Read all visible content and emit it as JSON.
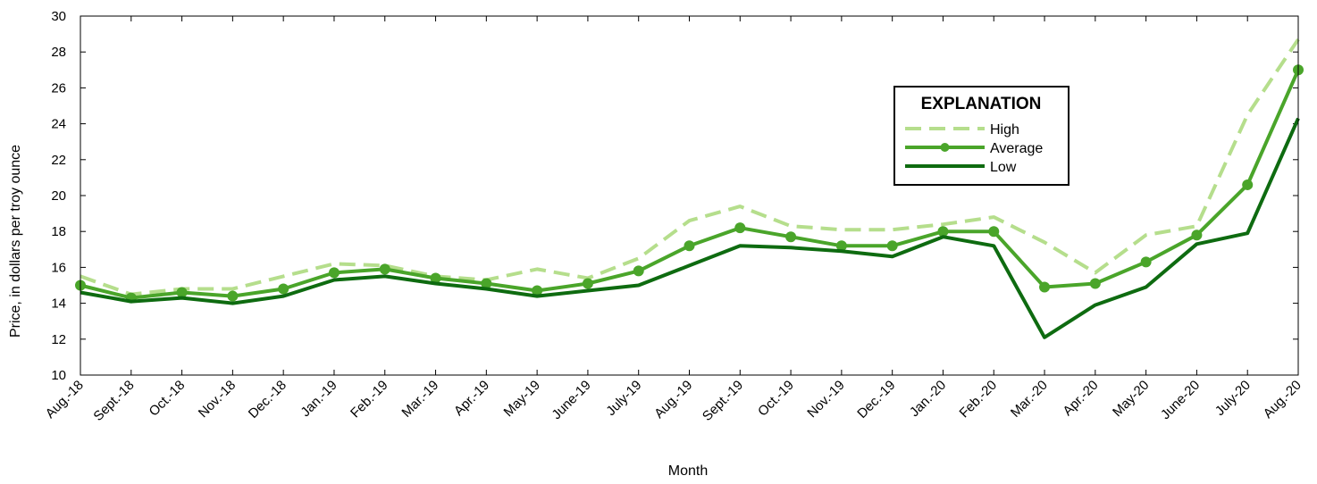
{
  "chart_data": {
    "type": "line",
    "title": "",
    "xlabel": "Month",
    "ylabel": "Price, in dollars per troy ounce",
    "ylim": [
      10,
      30
    ],
    "y_ticks": [
      10,
      12,
      14,
      16,
      18,
      20,
      22,
      24,
      26,
      28,
      30
    ],
    "grid": false,
    "legend_title": "EXPLANATION",
    "legend_position": "upper-right",
    "categories": [
      "Aug.-18",
      "Sept.-18",
      "Oct.-18",
      "Nov.-18",
      "Dec.-18",
      "Jan.-19",
      "Feb.-19",
      "Mar.-19",
      "Apr.-19",
      "May-19",
      "June-19",
      "July-19",
      "Aug.-19",
      "Sept.-19",
      "Oct.-19",
      "Nov.-19",
      "Dec.-19",
      "Jan.-20",
      "Feb.-20",
      "Mar.-20",
      "Apr.-20",
      "May-20",
      "June-20",
      "July-20",
      "Aug.-20"
    ],
    "series": [
      {
        "name": "High",
        "style": "dashed",
        "color": "#b5de8c",
        "values": [
          15.5,
          14.5,
          14.8,
          14.8,
          15.5,
          16.2,
          16.1,
          15.5,
          15.3,
          15.9,
          15.4,
          16.5,
          18.6,
          19.4,
          18.3,
          18.1,
          18.1,
          18.4,
          18.8,
          17.4,
          15.7,
          17.8,
          18.3,
          24.5,
          28.7
        ]
      },
      {
        "name": "Average",
        "style": "solid-markers",
        "color": "#4aa52a",
        "values": [
          15.0,
          14.3,
          14.6,
          14.4,
          14.8,
          15.7,
          15.9,
          15.4,
          15.1,
          14.7,
          15.1,
          15.8,
          17.2,
          18.2,
          17.7,
          17.2,
          17.2,
          18.0,
          18.0,
          14.9,
          15.1,
          16.3,
          17.8,
          20.6,
          27.0
        ]
      },
      {
        "name": "Low",
        "style": "solid",
        "color": "#0e6b10",
        "values": [
          14.6,
          14.1,
          14.3,
          14.0,
          14.4,
          15.3,
          15.5,
          15.1,
          14.8,
          14.4,
          14.7,
          15.0,
          16.1,
          17.2,
          17.1,
          16.9,
          16.6,
          17.7,
          17.2,
          12.1,
          13.9,
          14.9,
          17.3,
          17.9,
          24.3
        ]
      }
    ]
  }
}
